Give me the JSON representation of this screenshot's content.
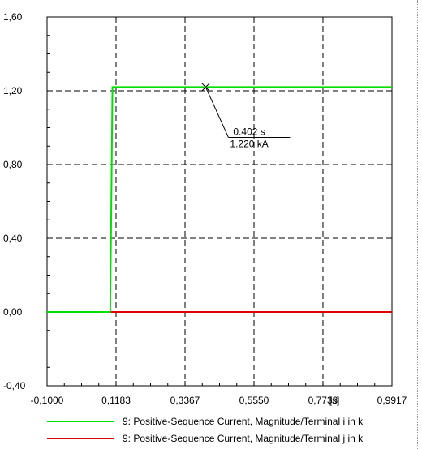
{
  "chart_data": {
    "type": "line",
    "xlim": [
      -0.1,
      0.9917
    ],
    "ylim": [
      -0.4,
      1.6
    ],
    "x_ticks": [
      -0.1,
      0.1183,
      0.3367,
      0.555,
      0.7733,
      0.9917
    ],
    "x_tick_labels": [
      "-0,1000",
      "0,1183",
      "0,3367",
      "0,5550",
      "0,7733",
      "0,9917"
    ],
    "y_ticks": [
      -0.4,
      0.0,
      0.4,
      0.8,
      1.2,
      1.6
    ],
    "y_tick_labels": [
      "-0,40",
      "0,00",
      "0,40",
      "0,80",
      "1,20",
      "1,60"
    ],
    "x_unit_label": "[s]",
    "grid": true,
    "legend_placement": "bottom",
    "series": [
      {
        "name": "9: Positive-Sequence Current, Magnitude/Terminal i in k",
        "color": "#00e000",
        "x": [
          -0.1,
          0.0999,
          0.103,
          0.107,
          0.9917
        ],
        "y": [
          0.0,
          0.0,
          0.5,
          1.22,
          1.22
        ]
      },
      {
        "name": "9: Positive-Sequence Current, Magnitude/Terminal j in k",
        "color": "#e00000",
        "x": [
          -0.1,
          0.9917
        ],
        "y": [
          0.0,
          0.0
        ]
      }
    ],
    "annotation": {
      "x": 0.402,
      "y": 1.22,
      "x_text": "0.402 s",
      "y_text": "1.220 kA"
    }
  }
}
